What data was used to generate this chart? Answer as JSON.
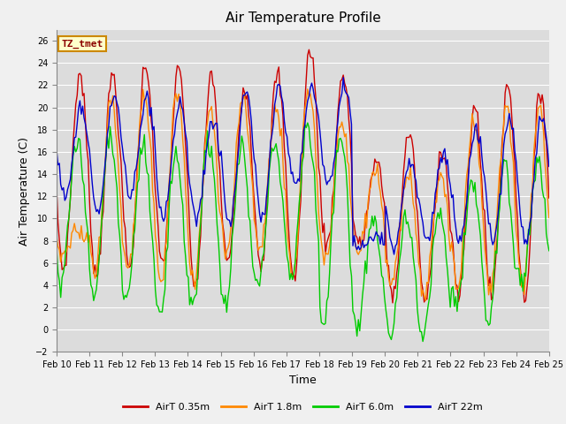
{
  "title": "Air Temperature Profile",
  "ylabel": "Air Temperature (C)",
  "xlabel": "Time",
  "ylim": [
    -2,
    27
  ],
  "yticks": [
    -2,
    0,
    2,
    4,
    6,
    8,
    10,
    12,
    14,
    16,
    18,
    20,
    22,
    24,
    26
  ],
  "xtick_labels": [
    "Feb 10",
    "Feb 11",
    "Feb 12",
    "Feb 13",
    "Feb 14",
    "Feb 15",
    "Feb 16",
    "Feb 17",
    "Feb 18",
    "Feb 19",
    "Feb 20",
    "Feb 21",
    "Feb 22",
    "Feb 23",
    "Feb 24",
    "Feb 25"
  ],
  "legend_label": "TZ_tmet",
  "series_labels": [
    "AirT 0.35m",
    "AirT 1.8m",
    "AirT 6.0m",
    "AirT 22m"
  ],
  "colors": [
    "#cc0000",
    "#ff8800",
    "#00cc00",
    "#0000cc"
  ],
  "bg_color": "#dcdcdc",
  "fig_color": "#f0f0f0",
  "title_fontsize": 11,
  "axis_label_fontsize": 9,
  "tick_fontsize": 7,
  "legend_fontsize": 8,
  "daily_max_r": [
    23,
    23,
    24,
    23.3,
    23,
    22,
    23,
    25.5,
    23,
    15,
    17.8,
    16.5,
    20,
    22,
    21.5
  ],
  "daily_min_r": [
    5.5,
    5,
    5.5,
    6,
    4,
    6,
    6,
    4.5,
    7.5,
    7.5,
    3,
    2.5,
    3,
    3,
    3
  ],
  "daily_max_o": [
    9,
    21,
    21,
    22,
    20,
    21,
    20,
    22,
    18.5,
    14,
    14,
    14,
    19,
    20,
    20
  ],
  "daily_min_o": [
    7,
    5,
    5,
    4,
    4,
    7,
    7,
    5,
    6,
    7,
    3.5,
    3,
    4,
    4,
    4
  ],
  "daily_max_g": [
    17,
    17.5,
    16.5,
    16,
    17,
    16.5,
    17,
    18.5,
    18,
    10,
    10,
    11,
    13.5,
    15,
    15
  ],
  "daily_min_g": [
    4.5,
    3,
    2.5,
    1,
    2,
    2,
    4,
    4.5,
    0.5,
    0.5,
    -0.5,
    -1.0,
    2,
    1,
    4
  ],
  "daily_max_b": [
    20,
    21,
    21,
    20.5,
    19,
    21,
    22,
    22,
    22,
    8.5,
    15,
    16,
    18,
    19,
    19
  ],
  "daily_min_b": [
    12,
    10.5,
    12,
    10,
    10,
    10,
    10,
    13,
    13,
    7.5,
    7.5,
    8,
    8,
    8,
    8
  ]
}
